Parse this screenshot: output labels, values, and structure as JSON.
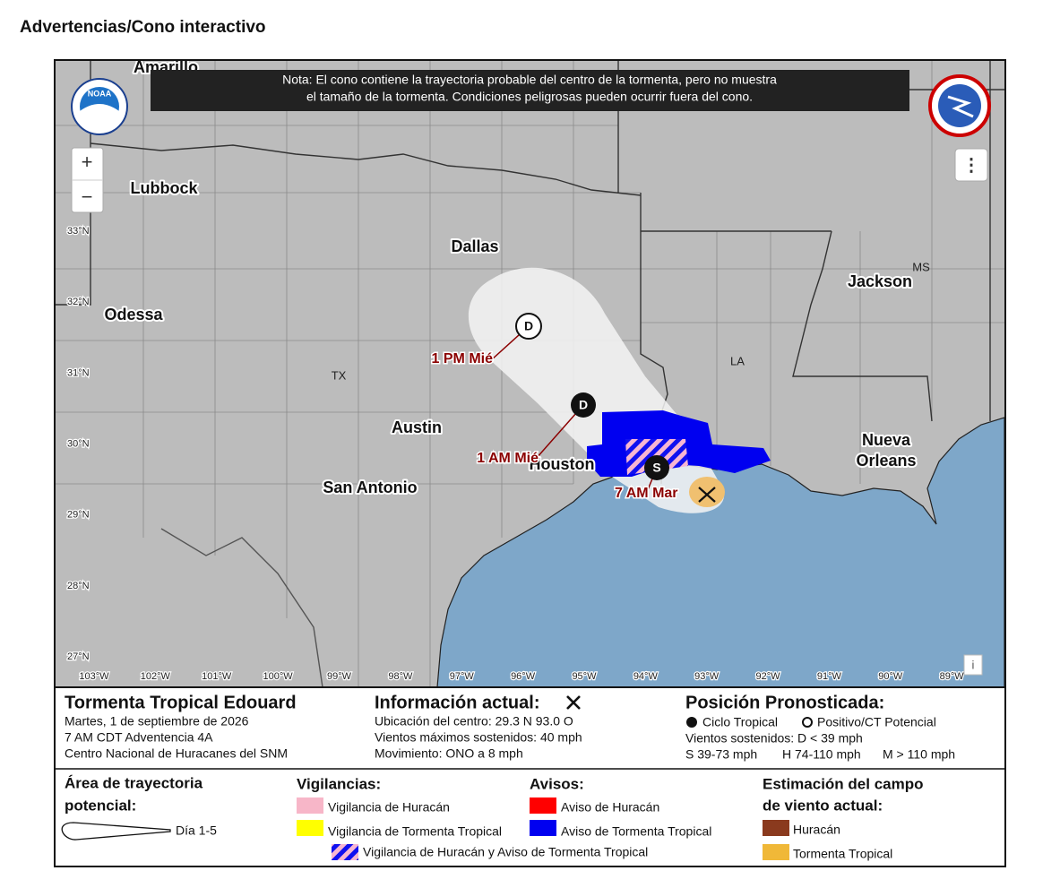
{
  "header": {
    "title": "Advertencias/Cono interactivo"
  },
  "map": {
    "note": [
      "Nota: El cono contiene la trayectoria probable del centro de la tormenta, pero no muestra",
      "el tamaño de la tormenta. Condiciones peligrosas pueden ocurrir fuera del cono."
    ],
    "logo": "NOAA",
    "cities": {
      "amarillo": "Amarillo",
      "lubbock": "Lubbock",
      "dallas": "Dallas",
      "odessa": "Odessa",
      "austin": "Austin",
      "houston": "Houston",
      "san_antonio": "San Antonio",
      "jackson": "Jackson",
      "nueva": "Nueva",
      "orleans": "Orleans"
    },
    "states": {
      "tx": "TX",
      "la": "LA",
      "ms": "MS"
    },
    "lat_labels": [
      "33°N",
      "32°N",
      "31°N",
      "30°N",
      "29°N",
      "28°N",
      "27°N"
    ],
    "lon_labels": [
      "103°W",
      "102°W",
      "101°W",
      "100°W",
      "99°W",
      "98°W",
      "97°W",
      "96°W",
      "95°W",
      "94°W",
      "93°W",
      "92°W",
      "91°W",
      "90°W",
      "89°W"
    ],
    "forecast_points": [
      {
        "symbol": "D",
        "label": "1 PM Mié"
      },
      {
        "symbol": "D",
        "label": "1 AM Mié"
      },
      {
        "symbol": "S",
        "label": "7 AM Mar"
      }
    ],
    "controls": {
      "zoom_in": "+",
      "zoom_out": "−",
      "menu": "⋮",
      "info": "i"
    }
  },
  "storm": {
    "name": "Tormenta Tropical Edouard",
    "date": "Martes, 1 de septiembre de 2026",
    "advisory": "7 AM CDT Adventencia 4A",
    "center": "Centro Nacional de Huracanes del SNM"
  },
  "current": {
    "heading": "Información actual:",
    "location": "Ubicación del centro: 29.3 N 93.0 O",
    "winds": "Vientos máximos sostenidos: 40 mph",
    "movement": "Movimiento: ONO a 8 mph"
  },
  "forecast": {
    "heading": "Posición Pronosticada:",
    "tropical": "Ciclo Tropical",
    "potential": "Positivo/CT Potencial",
    "winds": "Vientos sostenidos: D < 39 mph",
    "s": "S 39-73 mph",
    "h": "H 74-110 mph",
    "m": "M > 110 mph"
  },
  "legend": {
    "track_heading": [
      "Área de trayectoria",
      "potencial:"
    ],
    "track_day": "Día 1-5",
    "watches_heading": "Vigilancias:",
    "hurricane_watch": "Vigilancia de Huracán",
    "ts_watch": "Vigilancia de Tormenta Tropical",
    "warnings_heading": "Avisos:",
    "hurricane_warning": "Aviso de Huracán",
    "ts_warning": "Aviso de Tormenta Tropical",
    "combo": "Vigilancia de Huracán y Aviso de Tormenta Tropical",
    "wind_heading": [
      "Estimación del campo",
      "de viento actual:"
    ],
    "wind_hurricane": "Huracán",
    "wind_ts": "Tormenta Tropical"
  }
}
